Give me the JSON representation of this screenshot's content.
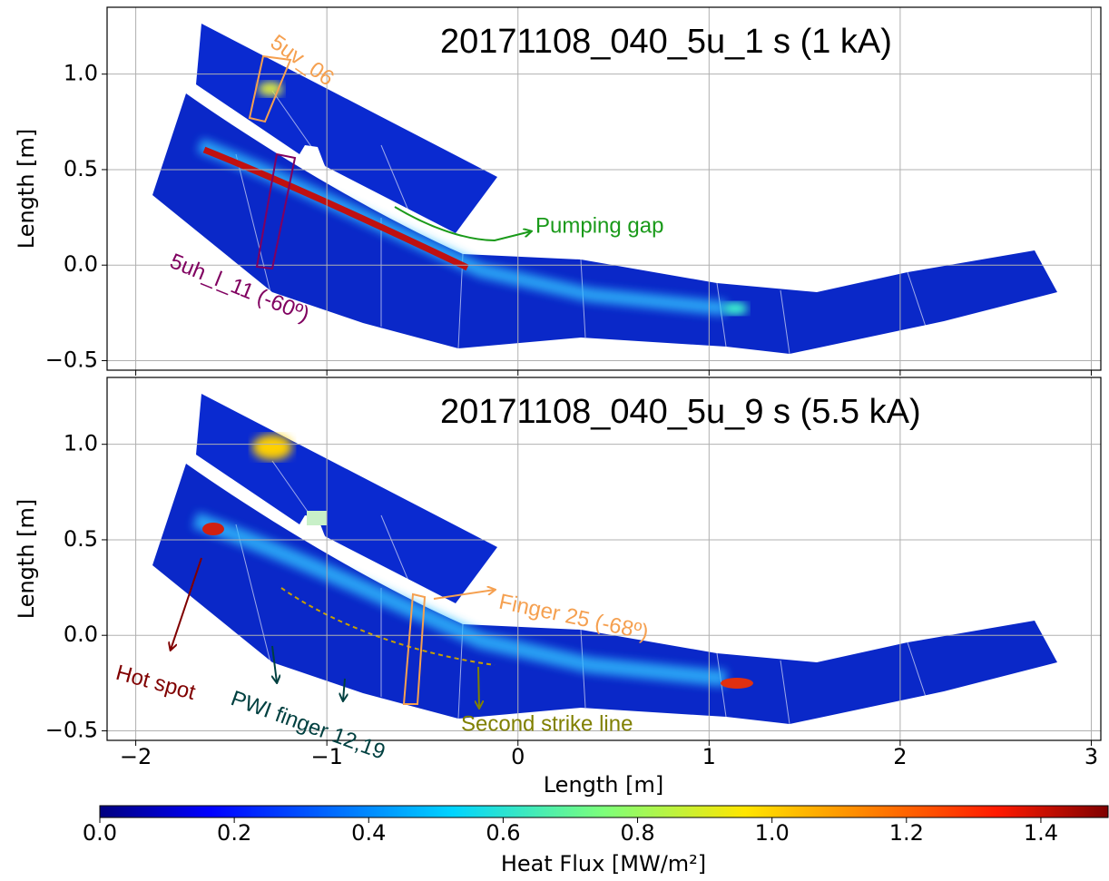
{
  "chart_data": {
    "type": "heatmap",
    "xlabel": "Length [m]",
    "xlim": [
      -2.15,
      3.05
    ],
    "xticks": [
      {
        "value": -2,
        "label": "−2"
      },
      {
        "value": -1,
        "label": "−1"
      },
      0,
      1,
      2,
      3
    ],
    "grid": true,
    "panels": [
      {
        "title": "20171108_040_5u_1 s (1 kA)",
        "ylabel": "Length [m]",
        "ylim": [
          -0.55,
          1.35
        ],
        "yticks": [
          {
            "value": -0.5,
            "label": "−0.5"
          },
          {
            "value": 0,
            "label": "0.0"
          },
          0.5,
          {
            "value": 1,
            "label": "1.0"
          }
        ],
        "annotations": [
          {
            "text": "5uv_06",
            "color": "#f5a050"
          },
          {
            "text": "Pumping gap",
            "color": "#1a9a1a"
          },
          {
            "text": "5uh_l_11 (-60º)",
            "color": "#800060"
          }
        ]
      },
      {
        "title": "20171108_040_5u_9 s (5.5 kA)",
        "ylabel": "Length [m]",
        "ylim": [
          -0.55,
          1.35
        ],
        "yticks": [
          {
            "value": -0.5,
            "label": "−0.5"
          },
          {
            "value": 0,
            "label": "0.0"
          },
          0.5,
          {
            "value": 1,
            "label": "1.0"
          }
        ],
        "annotations": [
          {
            "text": "Finger 25 (-68º)",
            "color": "#f5a050"
          },
          {
            "text": "Hot spot",
            "color": "#800000"
          },
          {
            "text": "PWI finger 12,19",
            "color": "#004040"
          },
          {
            "text": "Second strike line",
            "color": "#808000"
          }
        ]
      }
    ],
    "colorbar": {
      "label": "Heat Flux [MW/m²]",
      "colormap": "jet",
      "lim": [
        0,
        1.5
      ],
      "ticks": [
        {
          "value": 0,
          "label": "0.0"
        },
        0.2,
        0.4,
        0.6,
        0.8,
        {
          "value": 1,
          "label": "1.0"
        },
        1.2,
        1.4
      ]
    }
  }
}
